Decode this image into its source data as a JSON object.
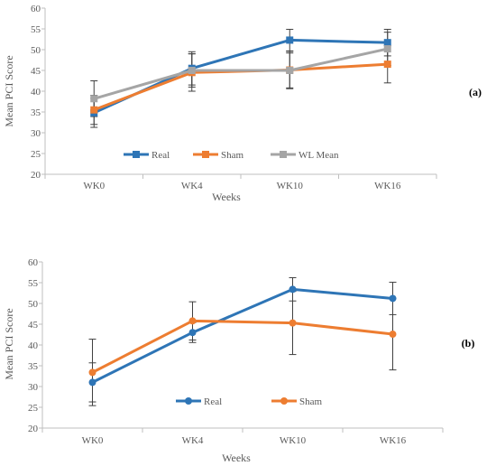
{
  "chart_data": [
    {
      "type": "line",
      "panel_label": "(a)",
      "categories": [
        "WK0",
        "WK4",
        "WK10",
        "WK16"
      ],
      "xlabel": "Weeks",
      "ylabel": "Mean PCI Score",
      "ylim": [
        20,
        60
      ],
      "yticks": [
        "20",
        "25",
        "30",
        "35",
        "40",
        "45",
        "50",
        "55",
        "60"
      ],
      "marker": "square",
      "series": [
        {
          "name": "Real",
          "color": "#2E75B6",
          "values": [
            34.8,
            45.5,
            52.3,
            51.7
          ],
          "error": [
            3.5,
            4.0,
            2.6,
            3.2
          ]
        },
        {
          "name": "Sham",
          "color": "#ED7D31",
          "values": [
            35.5,
            44.5,
            45.1,
            46.5
          ],
          "error": [
            3.5,
            4.5,
            4.5,
            4.5
          ]
        },
        {
          "name": "WL Mean",
          "color": "#A5A5A5",
          "values": [
            38.2,
            45.0,
            45.0,
            50.2
          ],
          "error": [
            4.3,
            4.0,
            4.2,
            4.0
          ]
        }
      ],
      "legend": "bottom"
    },
    {
      "type": "line",
      "panel_label": "(b)",
      "categories": [
        "WK0",
        "WK4",
        "WK10",
        "WK16"
      ],
      "xlabel": "Weeks",
      "ylabel": "Mean PCI Score",
      "ylim": [
        20,
        60
      ],
      "yticks": [
        "20",
        "25",
        "30",
        "35",
        "40",
        "45",
        "50",
        "55",
        "60"
      ],
      "marker": "circle",
      "series": [
        {
          "name": "Real",
          "color": "#2E75B6",
          "values": [
            31.0,
            43.0,
            53.4,
            51.2
          ],
          "error": [
            4.7,
            2.4,
            2.8,
            3.9
          ]
        },
        {
          "name": "Sham",
          "color": "#ED7D31",
          "values": [
            33.4,
            45.8,
            45.3,
            42.6
          ],
          "error": [
            8.0,
            4.6,
            7.6,
            8.6
          ]
        }
      ],
      "legend": "bottom"
    }
  ]
}
